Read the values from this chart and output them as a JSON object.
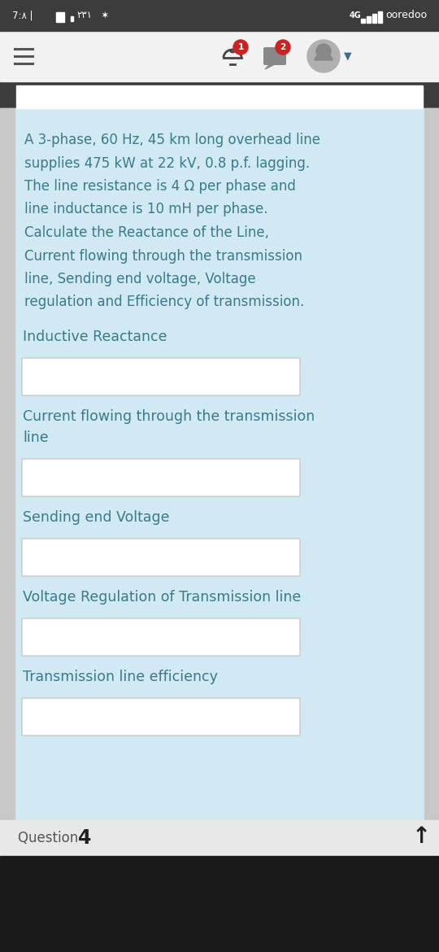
{
  "status_bar_bg": "#3c3c3c",
  "text_color": "#3a7a8a",
  "question_text_lines": [
    "A 3-phase, 60 Hz, 45 km long overhead line",
    "supplies 475 kW at 22 kV, 0.8 p.f. lagging.",
    "The line resistance is 4 Ω per phase and",
    "line inductance is 10 mH per phase.",
    "Calculate the Reactance of the Line,",
    "Current flowing through the transmission",
    "line, Sending end voltage, Voltage",
    "regulation and Efficiency of transmission."
  ],
  "section_labels": [
    "Inductive Reactance",
    "Current flowing through the transmission\nline",
    "Sending end Voltage",
    "Voltage Regulation of Transmission line",
    "Transmission line efficiency"
  ],
  "content_bg": "#d0e9f2",
  "side_strip_color": "#c0c0c0",
  "header_bg": "#f2f2f2",
  "white_card_bg": "#ffffff",
  "bottom_bar_bg": "#e8e8e8",
  "android_nav_bg": "#1a1a1a",
  "input_bg": "#ffffff",
  "input_border": "#c8c8c8",
  "badge_red": "#cc2222",
  "status_left": "7:^A □ X^1 ★",
  "status_right": "4G.ll ooredoo"
}
